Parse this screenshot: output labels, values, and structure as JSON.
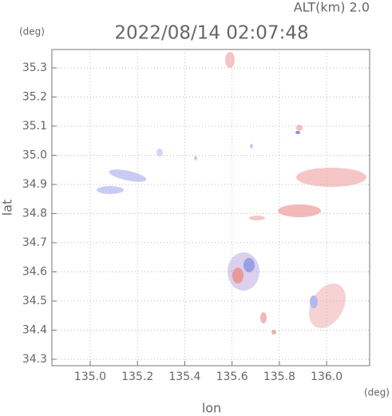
{
  "chart_data": {
    "type": "map",
    "title": "2022/08/14 02:07:48",
    "subtitle": "ALT(km) 2.0",
    "x_label": "lon",
    "y_label": "lat",
    "x_unit": "(deg)",
    "y_unit": "(deg)",
    "xlim": [
      134.838,
      136.182
    ],
    "ylim": [
      34.278,
      35.363
    ],
    "xticks": [
      {
        "value": 135,
        "label": "135.0"
      },
      135.2,
      135.4,
      135.6,
      135.8,
      {
        "value": 136,
        "label": "136.0"
      }
    ],
    "yticks": [
      34.3,
      34.4,
      34.5,
      34.6,
      34.7,
      34.8,
      34.9,
      {
        "value": 35,
        "label": "35.0"
      },
      35.1,
      35.2,
      35.3
    ],
    "grid": true
  }
}
